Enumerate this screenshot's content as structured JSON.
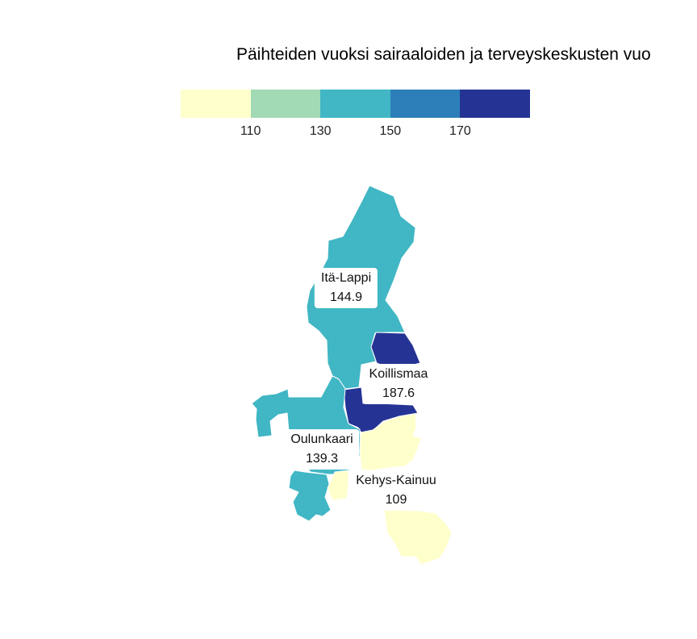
{
  "title": "Päihteiden vuoksi sairaaloiden ja terveyskeskusten vuo",
  "legend": {
    "colors": [
      "#ffffcc",
      "#a1dab4",
      "#41b6c4",
      "#2c7fb8",
      "#253494"
    ],
    "ticks": [
      "110",
      "130",
      "150",
      "170"
    ]
  },
  "chart_data": {
    "type": "choropleth",
    "regions": [
      {
        "name": "Itä-Lappi",
        "value": "144.9",
        "color": "#41b6c4"
      },
      {
        "name": "Koillismaa",
        "value": "187.6",
        "color": "#253494"
      },
      {
        "name": "Oulunkaari",
        "value": "139.3",
        "color": "#41b6c4"
      },
      {
        "name": "Kehys-Kainuu",
        "value": "109",
        "color": "#ffffcc"
      }
    ]
  }
}
